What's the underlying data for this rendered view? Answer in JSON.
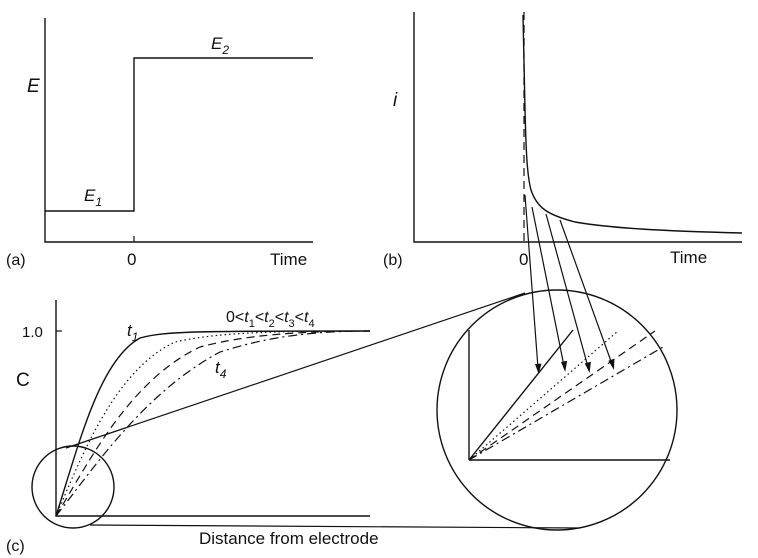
{
  "panel_a": {
    "panel_label": "(a)",
    "y_label": "E",
    "x_label": "Time",
    "zero_tick": "0",
    "level_low": {
      "base": "E",
      "sub": "1"
    },
    "level_high": {
      "base": "E",
      "sub": "2"
    }
  },
  "panel_b": {
    "panel_label": "(b)",
    "y_label": "i",
    "x_label": "Time",
    "zero_tick": "0"
  },
  "panel_c": {
    "panel_label": "(c)",
    "y_label": "C",
    "y_tick": "1.0",
    "x_label": "Distance from electrode",
    "curve_first": {
      "base": "t",
      "sub": "1"
    },
    "curve_last": {
      "base": "t",
      "sub": "4"
    },
    "ordering": {
      "zero": "0",
      "lt": "<",
      "base": "t",
      "subs": [
        "1",
        "2",
        "3",
        "4"
      ]
    }
  }
}
